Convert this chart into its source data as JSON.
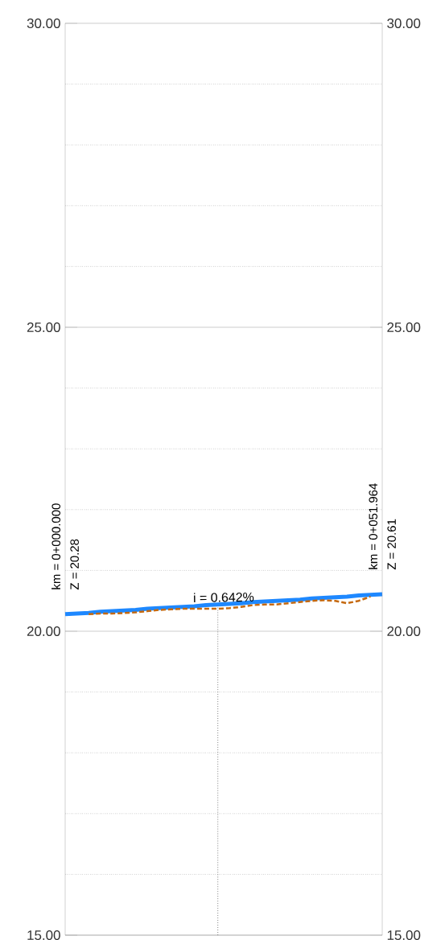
{
  "chart_data": {
    "type": "line",
    "categories": [
      null,
      null,
      null,
      null,
      null,
      null,
      null,
      null,
      null,
      null,
      null,
      null,
      null,
      null,
      null,
      null,
      null,
      null,
      null,
      null,
      null,
      null,
      null,
      null,
      null,
      null,
      null,
      null
    ],
    "ylim": [
      15,
      30
    ],
    "yticks": [
      {
        "value": 15,
        "label": "15.00"
      },
      {
        "value": 16,
        "label": null
      },
      {
        "value": 17,
        "label": null
      },
      {
        "value": 18,
        "label": null
      },
      {
        "value": 19,
        "label": null
      },
      {
        "value": 20,
        "label": "20.00"
      },
      {
        "value": 21,
        "label": null
      },
      {
        "value": 22,
        "label": null
      },
      {
        "value": 23,
        "label": null
      },
      {
        "value": 24,
        "label": null
      },
      {
        "value": 25,
        "label": "25.00"
      },
      {
        "value": 26,
        "label": null
      },
      {
        "value": 27,
        "label": null
      },
      {
        "value": 28,
        "label": null
      },
      {
        "value": 29,
        "label": null
      },
      {
        "value": 30,
        "label": "30.00"
      }
    ],
    "y2lim": [
      15,
      30
    ],
    "y2ticks": [
      {
        "value": 15,
        "label": "15.00"
      },
      {
        "value": 20,
        "label": "20.00"
      },
      {
        "value": 25,
        "label": "25.00"
      },
      {
        "value": 30,
        "label": "30.00"
      }
    ],
    "tick_labels": "y",
    "grid": "y",
    "series": [
      {
        "color": "#c5690f",
        "line_style": "dashed",
        "values": [
          null,
          null,
          20.28,
          20.29,
          20.29,
          20.3,
          20.31,
          20.33,
          20.35,
          20.36,
          20.37,
          20.37,
          20.37,
          20.37,
          20.38,
          20.4,
          20.43,
          20.44,
          20.44,
          20.46,
          20.48,
          20.5,
          20.51,
          20.5,
          20.46,
          20.5,
          20.57,
          null
        ]
      },
      {
        "color": "#1e88ff",
        "line_style": "solid",
        "values": [
          20.28,
          20.29,
          20.3,
          20.32,
          20.33,
          20.34,
          20.35,
          20.37,
          20.38,
          20.39,
          20.4,
          20.41,
          20.43,
          20.44,
          20.45,
          20.46,
          20.48,
          20.49,
          20.5,
          20.51,
          20.52,
          20.54,
          20.55,
          20.56,
          20.57,
          20.59,
          20.6,
          20.61
        ]
      }
    ],
    "annotations": [
      "km = 0+000.000",
      "Z = 20.28",
      "km = 0+051.964",
      "Z = 20.61",
      "i = 0.642%"
    ]
  }
}
